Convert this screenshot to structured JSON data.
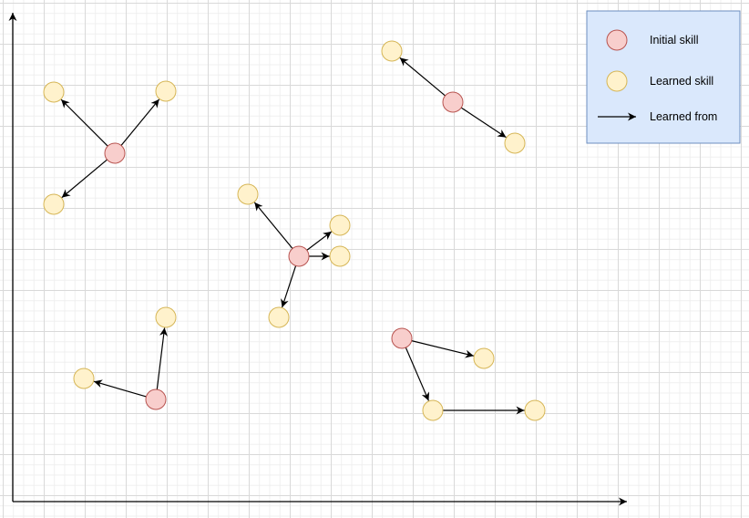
{
  "colors": {
    "initial_fill": "#f8cecc",
    "initial_stroke": "#b85450",
    "learned_fill": "#fff2cc",
    "learned_stroke": "#d6b656",
    "legend_fill": "#dae8fc",
    "legend_stroke": "#6c8ebf",
    "edge": "#000000"
  },
  "legend": {
    "initial_label": "Initial skill",
    "learned_label": "Learned skill",
    "edge_label": "Learned from"
  },
  "clusters": [
    {
      "initial": "node-a",
      "learned": [
        "node-a1",
        "node-a2",
        "node-a3"
      ],
      "edges": [
        [
          "node-a",
          "node-a1"
        ],
        [
          "node-a",
          "node-a2"
        ],
        [
          "node-a",
          "node-a3"
        ]
      ]
    },
    {
      "initial": "node-b",
      "learned": [
        "node-b1",
        "node-b2"
      ],
      "edges": [
        [
          "node-b",
          "node-b1"
        ],
        [
          "node-b",
          "node-b2"
        ]
      ]
    },
    {
      "initial": "node-c",
      "learned": [
        "node-c1",
        "node-c2",
        "node-c3",
        "node-c4"
      ],
      "edges": [
        [
          "node-c",
          "node-c1"
        ],
        [
          "node-c",
          "node-c2"
        ],
        [
          "node-c",
          "node-c3"
        ],
        [
          "node-c",
          "node-c4"
        ]
      ]
    },
    {
      "initial": "node-d",
      "learned": [
        "node-d1",
        "node-d2"
      ],
      "edges": [
        [
          "node-d",
          "node-d1"
        ],
        [
          "node-d",
          "node-d2"
        ]
      ]
    },
    {
      "initial": "node-e",
      "learned": [
        "node-e1",
        "node-e2",
        "node-e3"
      ],
      "edges": [
        [
          "node-e",
          "node-e1"
        ],
        [
          "node-e",
          "node-e2"
        ],
        [
          "node-e2",
          "node-e3"
        ]
      ]
    }
  ]
}
